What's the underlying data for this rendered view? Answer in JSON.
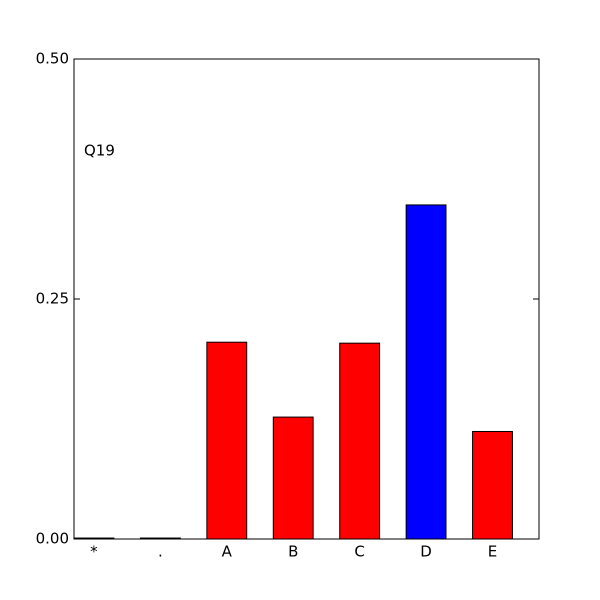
{
  "chart_data": {
    "type": "bar",
    "annotation": "Q19",
    "categories": [
      "*",
      ".",
      "A",
      "B",
      "C",
      "D",
      "E"
    ],
    "values": [
      0.001,
      0.001,
      0.205,
      0.127,
      0.204,
      0.348,
      0.112
    ],
    "colors": [
      "#ff0000",
      "#ff0000",
      "#ff0000",
      "#ff0000",
      "#ff0000",
      "#0000ff",
      "#ff0000"
    ],
    "ylim": [
      0,
      0.5
    ],
    "yticks": [
      {
        "value": 0,
        "label": "0.00"
      },
      {
        "value": 0.25,
        "label": "0.25"
      },
      {
        "value": 0.5,
        "label": "0.50"
      }
    ],
    "grid": false
  }
}
